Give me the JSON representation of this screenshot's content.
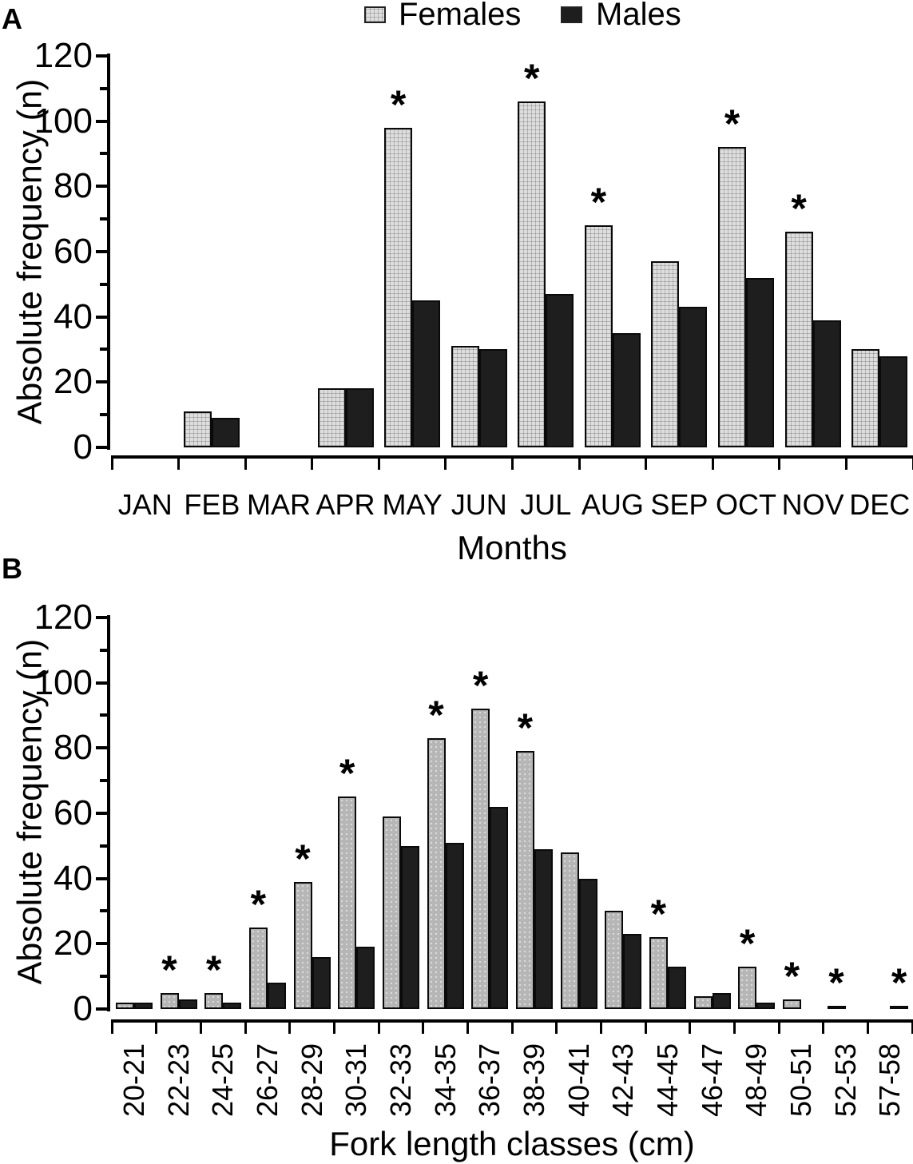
{
  "figure": {
    "legend": {
      "females_label": "Females",
      "males_label": "Males"
    },
    "colors": {
      "female_fill_a": "#dedede",
      "female_fill_b": "#b6b6b6",
      "male_fill": "#1e1e1e",
      "axis": "#000000",
      "background": "#ffffff"
    }
  },
  "chart_data": [
    {
      "type": "bar",
      "panel_label": "A",
      "title": "",
      "categories": [
        "JAN",
        "FEB",
        "MAR",
        "APR",
        "MAY",
        "JUN",
        "JUL",
        "AUG",
        "SEP",
        "OCT",
        "NOV",
        "DEC"
      ],
      "series": [
        {
          "name": "Females",
          "values": [
            0,
            11,
            0,
            18,
            98,
            31,
            106,
            68,
            57,
            92,
            66,
            30
          ]
        },
        {
          "name": "Males",
          "values": [
            0,
            9,
            0,
            18,
            45,
            30,
            47,
            35,
            43,
            52,
            39,
            28
          ]
        }
      ],
      "stars": [
        null,
        null,
        null,
        null,
        "F",
        null,
        "F",
        "F",
        null,
        "F",
        "F",
        null
      ],
      "star_symbol": "*",
      "xlabel": "Months",
      "ylabel": "Absolute frequency (n)",
      "ylim": [
        0,
        120
      ],
      "ytick_step": 20,
      "yminor_step": 10,
      "grid": false,
      "legend_position": "top-center"
    },
    {
      "type": "bar",
      "panel_label": "B",
      "title": "",
      "categories": [
        "20-21",
        "22-23",
        "24-25",
        "26-27",
        "28-29",
        "30-31",
        "32-33",
        "34-35",
        "36-37",
        "38-39",
        "40-41",
        "42-43",
        "44-45",
        "46-47",
        "48-49",
        "50-51",
        "52-53",
        "57-58"
      ],
      "series": [
        {
          "name": "Females",
          "values": [
            2,
            5,
            5,
            25,
            39,
            65,
            59,
            83,
            92,
            79,
            48,
            30,
            22,
            4,
            13,
            3,
            1,
            0
          ]
        },
        {
          "name": "Males",
          "values": [
            2,
            3,
            2,
            8,
            16,
            19,
            50,
            51,
            62,
            49,
            40,
            23,
            13,
            5,
            2,
            0,
            0,
            1
          ]
        }
      ],
      "stars": [
        null,
        "F",
        "F",
        "F",
        "F",
        "F",
        null,
        "F",
        "F",
        "F",
        null,
        null,
        "F",
        null,
        "F",
        "F",
        "F",
        "M"
      ],
      "star_symbol": "*",
      "xlabel": "Fork length classes (cm)",
      "ylabel": "Absolute frequency (n)",
      "ylim": [
        0,
        120
      ],
      "ytick_step": 20,
      "yminor_step": 10,
      "grid": false,
      "legend_position": "none"
    }
  ]
}
